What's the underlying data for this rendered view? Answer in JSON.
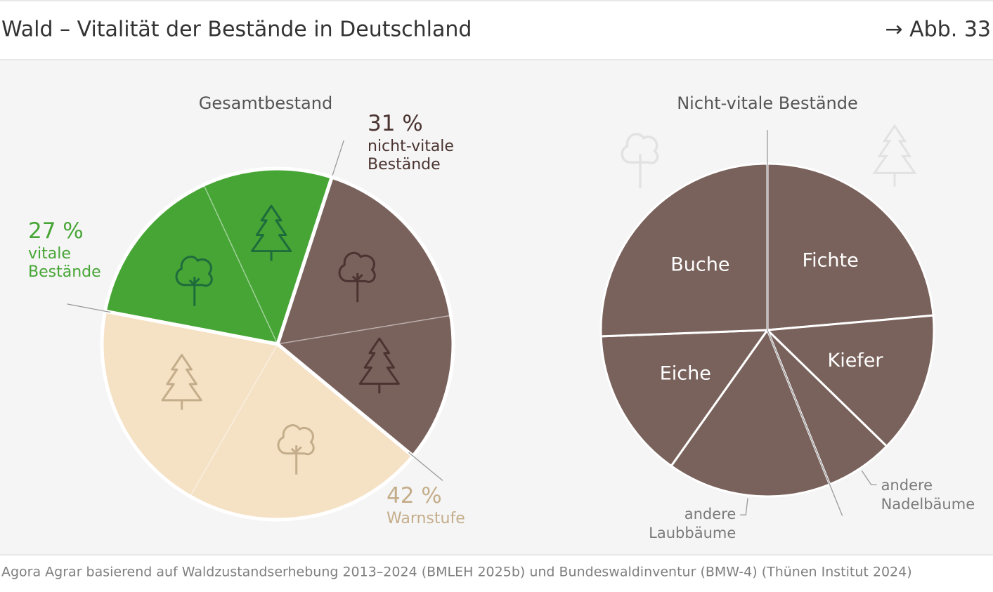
{
  "header": {
    "title": "Wald – Vitalität der Bestände in Deutschland",
    "figure": "→ Abb. 33"
  },
  "source": "Agora Agrar basierend auf Waldzustandserhebung 2013–2024 (BMLEH 2025b) und Bundeswaldinventur (BMW-4) (Thünen Institut 2024)",
  "chart_data": [
    {
      "type": "pie",
      "title": "Gesamtbestand",
      "groups": [
        {
          "label": "nicht-vitale Bestände",
          "value": 31,
          "value_label": "31 %",
          "color": "#7a625c",
          "icon_color": "#4a3330",
          "label_color": "#4a3330",
          "parts": [
            {
              "value": 17.4,
              "icon": "laubbaum"
            },
            {
              "value": 13.6,
              "icon": "nadelbaum"
            }
          ]
        },
        {
          "label": "Warnstufe",
          "value": 42,
          "value_label": "42 %",
          "color": "#f5e1c4",
          "icon_color": "#c4ad8a",
          "label_color": "#c4ad8a",
          "parts": [
            {
              "value": 22.3,
              "icon": "laubbaum"
            },
            {
              "value": 19.7,
              "icon": "nadelbaum"
            }
          ]
        },
        {
          "label": "vitale Bestände",
          "value": 27,
          "value_label": "27 %",
          "color": "#46a535",
          "icon_color": "#1e6b3c",
          "label_color": "#46a535",
          "parts": [
            {
              "value": 15.1,
              "icon": "laubbaum"
            },
            {
              "value": 11.9,
              "icon": "nadelbaum"
            }
          ]
        }
      ]
    },
    {
      "type": "pie",
      "title": "Nicht-vitale Bestände",
      "categories": [
        "Fichte",
        "Kiefer",
        "andere Nadelbäume",
        "andere Laubbäume",
        "Eiche",
        "Buche"
      ],
      "values": [
        23.6,
        13.7,
        6.6,
        15.9,
        14.6,
        25.6
      ],
      "color": "#7a625c",
      "label_color": "#ffffff",
      "label_positions": [
        "inside",
        "inside",
        "outside",
        "outside",
        "inside",
        "inside"
      ]
    }
  ]
}
